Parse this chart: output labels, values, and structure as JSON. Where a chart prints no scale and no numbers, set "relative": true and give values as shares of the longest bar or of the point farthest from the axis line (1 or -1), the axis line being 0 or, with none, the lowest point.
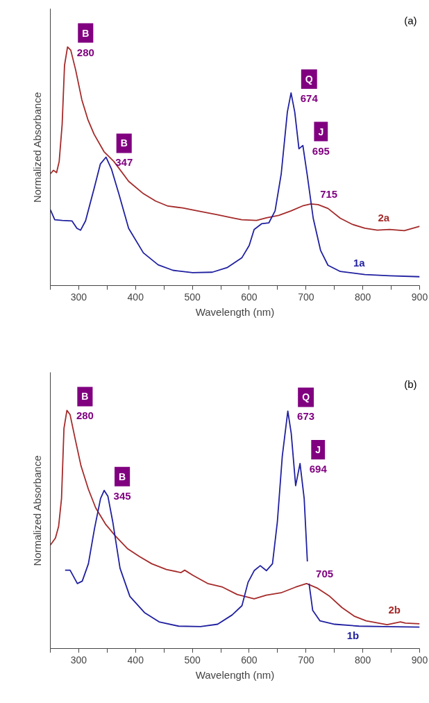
{
  "chart_data": [
    {
      "type": "line",
      "title": "(a)",
      "xlabel": "Wavelength (nm)",
      "ylabel": "Normalized Absorbance",
      "relative": true,
      "grid": false,
      "marker": "none",
      "line_style": "solid",
      "xlim": [
        250,
        900
      ],
      "xticks": [
        {
          "value": 250,
          "label": null
        },
        300,
        {
          "value": 350,
          "label": null
        },
        400,
        {
          "value": 450,
          "label": null
        },
        500,
        {
          "value": 550,
          "label": null
        },
        600,
        {
          "value": 650,
          "label": null
        },
        700,
        {
          "value": 750,
          "label": null
        },
        800,
        {
          "value": 850,
          "label": null
        },
        900
      ],
      "series": [
        {
          "name": "2a",
          "color": "#a52a2a",
          "x": [
            250,
            255.6,
            261,
            265.6,
            270.8,
            275,
            280.3,
            286,
            294.6,
            305.5,
            316,
            327,
            344.5,
            361.8,
            387.8,
            413.8,
            435.4,
            457,
            483,
            509,
            543.8,
            569.8,
            587,
            613,
            630.4,
            652,
            673.7,
            695.4,
            708.4,
            721.4,
            738.7,
            760.4,
            782,
            803.7,
            825.4,
            847,
            873,
            900
          ],
          "values": [
            0.468,
            0.483,
            0.473,
            0.52,
            0.675,
            0.923,
            1.0,
            0.986,
            0.903,
            0.778,
            0.696,
            0.634,
            0.561,
            0.52,
            0.437,
            0.385,
            0.354,
            0.333,
            0.325,
            0.313,
            0.297,
            0.284,
            0.276,
            0.273,
            0.284,
            0.294,
            0.313,
            0.335,
            0.342,
            0.339,
            0.323,
            0.282,
            0.256,
            0.24,
            0.232,
            0.235,
            0.23,
            0.248
          ]
        },
        {
          "name": "1a",
          "color": "#1f1fa0",
          "x": [
            250,
            257.8,
            270.8,
            288,
            296.8,
            303.3,
            312,
            327,
            338,
            348,
            357.5,
            370.5,
            387.8,
            413.8,
            439.8,
            465.8,
            500.4,
            535,
            561,
            587,
            600,
            608.7,
            621.8,
            634.7,
            645.6,
            656.4,
            667.2,
            673.7,
            680.2,
            687.6,
            694.5,
            701.9,
            712.7,
            725.7,
            738.7,
            760.4,
            803.7,
            847,
            900
          ],
          "values": [
            0.318,
            0.276,
            0.273,
            0.271,
            0.24,
            0.232,
            0.271,
            0.406,
            0.509,
            0.538,
            0.489,
            0.385,
            0.24,
            0.137,
            0.087,
            0.064,
            0.054,
            0.056,
            0.075,
            0.116,
            0.168,
            0.235,
            0.259,
            0.263,
            0.313,
            0.468,
            0.727,
            0.807,
            0.727,
            0.573,
            0.587,
            0.468,
            0.282,
            0.147,
            0.085,
            0.059,
            0.046,
            0.041,
            0.037
          ]
        }
      ],
      "annotations": [
        {
          "text": "280",
          "x": 280.3,
          "y": 1.0
        },
        {
          "text": "B",
          "x": 280.3,
          "y": 1.0
        },
        {
          "text": "347",
          "x": 348,
          "y": 0.538
        },
        {
          "text": "B",
          "x": 348,
          "y": 0.538
        },
        {
          "text": "674",
          "x": 673.7,
          "y": 0.807
        },
        {
          "text": "Q",
          "x": 673.7,
          "y": 0.807
        },
        {
          "text": "695",
          "x": 694.5,
          "y": 0.587
        },
        {
          "text": "J",
          "x": 694.5,
          "y": 0.587
        },
        {
          "text": "715",
          "x": 708.4,
          "y": 0.342
        }
      ]
    },
    {
      "type": "line",
      "title": "(b)",
      "xlabel": "Wavelength (nm)",
      "ylabel": "Normalized Absorbance",
      "relative": true,
      "grid": false,
      "marker": "none",
      "line_style": "solid",
      "xlim": [
        250,
        900
      ],
      "xticks": [
        {
          "value": 250,
          "label": null
        },
        300,
        {
          "value": 350,
          "label": null
        },
        400,
        {
          "value": 450,
          "label": null
        },
        500,
        {
          "value": 550,
          "label": null
        },
        600,
        {
          "value": 650,
          "label": null
        },
        700,
        {
          "value": 750,
          "label": null
        },
        800,
        {
          "value": 850,
          "label": null
        },
        900
      ],
      "series": [
        {
          "name": "2b",
          "color": "#a52a2a",
          "x": [
            250,
            259,
            264.6,
            269.7,
            274,
            279.2,
            284.8,
            293.3,
            304,
            317,
            329.8,
            347,
            364,
            385.6,
            407,
            428.5,
            454.3,
            480,
            486.5,
            501.5,
            527,
            553,
            578.8,
            608.8,
            630,
            656,
            681.8,
            701,
            720.4,
            741.8,
            763.3,
            784.8,
            806,
            827.7,
            842.7,
            866.3,
            875,
            900
          ],
          "values": [
            0.434,
            0.464,
            0.513,
            0.63,
            0.924,
            1.0,
            0.982,
            0.885,
            0.767,
            0.669,
            0.591,
            0.523,
            0.474,
            0.42,
            0.386,
            0.356,
            0.332,
            0.319,
            0.329,
            0.307,
            0.273,
            0.258,
            0.227,
            0.209,
            0.224,
            0.234,
            0.258,
            0.273,
            0.253,
            0.219,
            0.172,
            0.136,
            0.116,
            0.107,
            0.1,
            0.112,
            0.107,
            0.104
          ]
        },
        {
          "name": "1b",
          "color": "#1f1fa0",
          "x": [
            276,
            284.8,
            297.6,
            306.2,
            317,
            327.7,
            338.4,
            344.8,
            351.3,
            359.9,
            372.7,
            390,
            415.7,
            441.4,
            475.8,
            514.4,
            544.4,
            570,
            587.3,
            598,
            608.8,
            619.5,
            630.3,
            641,
            649.6,
            658.2,
            668,
            674,
            681.8,
            689.5,
            696.8,
            702.4,
            704,
            705.4,
            711.8,
            724.7,
            750.4,
            793.3,
            836.3,
            900
          ],
          "values": [
            0.329,
            0.329,
            0.273,
            0.283,
            0.356,
            0.503,
            0.63,
            0.664,
            0.64,
            0.532,
            0.337,
            0.219,
            0.151,
            0.112,
            0.094,
            0.092,
            0.102,
            0.141,
            0.18,
            0.278,
            0.327,
            0.348,
            0.327,
            0.356,
            0.532,
            0.806,
            0.997,
            0.904,
            0.684,
            0.777,
            0.63,
            0.366,
            null,
            0.273,
            0.16,
            0.116,
            0.102,
            0.094,
            0.092,
            0.09
          ]
        }
      ],
      "annotations": [
        {
          "text": "280",
          "x": 279.2,
          "y": 1.0
        },
        {
          "text": "B",
          "x": 279.2,
          "y": 1.0
        },
        {
          "text": "345",
          "x": 344.8,
          "y": 0.664
        },
        {
          "text": "B",
          "x": 344.8,
          "y": 0.664
        },
        {
          "text": "673",
          "x": 668,
          "y": 0.997
        },
        {
          "text": "Q",
          "x": 668,
          "y": 0.997
        },
        {
          "text": "694",
          "x": 689.5,
          "y": 0.777
        },
        {
          "text": "J",
          "x": 689.5,
          "y": 0.777
        },
        {
          "text": "705",
          "x": 701,
          "y": 0.273
        }
      ]
    }
  ]
}
